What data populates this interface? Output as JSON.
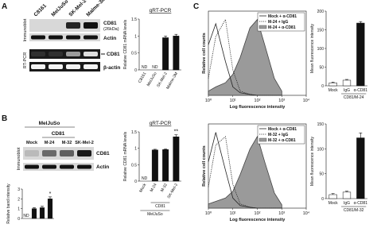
{
  "panel_labels": [
    "A",
    "B",
    "C"
  ],
  "blot_a": {
    "cell_lines": [
      "C8161",
      "MelJuSo",
      "SK-Mel-2",
      "Malme-3M"
    ],
    "sections": [
      "Immunoblot",
      "RT-PCR"
    ],
    "rows": [
      {
        "label": "CD81",
        "detail": "(26kDa)"
      },
      {
        "label": "Actin"
      },
      {
        "label": "CD81"
      },
      {
        "label": "β-actin"
      }
    ]
  },
  "blot_b": {
    "groups": [
      "MelJuSo",
      "CD81"
    ],
    "lanes": [
      "Mock",
      "M-24",
      "M-32",
      "SK-Mel-2"
    ],
    "section": "Immunoblot",
    "rows": [
      "CD81",
      "Actin"
    ]
  },
  "chart_data": [
    {
      "type": "bar",
      "title": "qRT-PCR",
      "y_label": "Relative CD81 mRNA levels",
      "categories": [
        "C8161",
        "MelJuSo",
        "SK-Mel-2",
        "Malme-3M"
      ],
      "values": [
        null,
        null,
        0.95,
        1.0
      ],
      "errors": [
        null,
        null,
        0.05,
        0.05
      ],
      "value_labels": [
        "ND",
        "ND",
        null,
        null
      ],
      "color": "#111111",
      "ylim": [
        0,
        1.5
      ],
      "yticks": [
        0,
        0.5,
        1,
        1.5
      ]
    },
    {
      "type": "bar",
      "y_label": "Relative band intensity",
      "categories": [
        null,
        null,
        null,
        null
      ],
      "values": [
        null,
        1.0,
        1.1,
        2.0
      ],
      "errors": [
        null,
        0.1,
        0.15,
        0.2
      ],
      "value_labels": [
        "ND",
        null,
        null,
        null
      ],
      "annotations": [
        null,
        null,
        null,
        "*"
      ],
      "color": "#111111",
      "ylim": [
        0,
        3
      ],
      "yticks": [
        0,
        1,
        2,
        3
      ]
    },
    {
      "type": "bar",
      "title": "qRT-PCR",
      "y_label": "Relative CD81 mRNA levels",
      "categories": [
        "Mock",
        "M-24",
        "M-32",
        "SK-Mel-2"
      ],
      "values": [
        null,
        0.95,
        0.96,
        1.35
      ],
      "errors": [
        null,
        0.02,
        0.02,
        0.06
      ],
      "value_labels": [
        "ND",
        null,
        null,
        null
      ],
      "annotations": [
        null,
        null,
        null,
        "**"
      ],
      "groups": [
        {
          "label": "CD81",
          "categories": [
            "M-24",
            "M-32"
          ]
        },
        {
          "label": "MelJuSo",
          "categories": [
            "Mock",
            "M-24",
            "M-32"
          ]
        }
      ],
      "color": "#111111",
      "ylim": [
        0,
        1.5
      ],
      "yticks": [
        0,
        0.5,
        1,
        1.5
      ]
    },
    {
      "type": "line",
      "x_label": "Log fluorescence intensity",
      "y_label": "Relative cell counts",
      "log_x": true,
      "x": [
        1,
        2,
        5,
        10,
        20,
        50,
        100,
        200,
        500,
        1000
      ],
      "series": [
        {
          "name": "Mock + α-CD81",
          "color": "#222222",
          "line_style": "solid",
          "fill": null,
          "values": [
            60,
            85,
            40,
            10,
            3,
            1,
            0,
            0,
            0,
            0
          ]
        },
        {
          "name": "M-24 + IgG",
          "color": "#222222",
          "line_style": "dotted",
          "fill": null,
          "values": [
            20,
            70,
            90,
            30,
            5,
            1,
            0,
            0,
            0,
            0
          ]
        },
        {
          "name": "M-24 + α-CD81",
          "color": "#444444",
          "line_style": "solid",
          "fill": "#9a9a9a",
          "values": [
            5,
            10,
            15,
            25,
            45,
            80,
            90,
            60,
            20,
            5
          ]
        }
      ],
      "xlim": [
        1,
        10000
      ],
      "ylim": [
        0,
        100
      ],
      "xticks": [
        {
          "value": 1,
          "label": "10⁰"
        },
        {
          "value": 10,
          "label": "10¹"
        },
        {
          "value": 100,
          "label": "10²"
        },
        {
          "value": 1000,
          "label": "10³"
        },
        {
          "value": 10000,
          "label": "10⁴"
        }
      ],
      "legend": "upper right"
    },
    {
      "type": "bar",
      "y_label": "Mean fluorescence intensity",
      "categories": [
        "Mock",
        "IgG",
        "α-CD81"
      ],
      "values": [
        8,
        15,
        168
      ],
      "errors": [
        2,
        2,
        4
      ],
      "colors": [
        "#ffffff",
        "#ffffff",
        "#111111"
      ],
      "groups": [
        {
          "label": "CD81/M-24",
          "categories": [
            "IgG",
            "α-CD81"
          ]
        }
      ],
      "ylim": [
        0,
        200
      ],
      "yticks": [
        0,
        50,
        100,
        150,
        200
      ]
    },
    {
      "type": "line",
      "x_label": "Log fluorescence intensity",
      "y_label": "Relative cell counts",
      "log_x": true,
      "x": [
        1,
        2,
        5,
        10,
        20,
        50,
        100,
        200,
        500,
        1000
      ],
      "series": [
        {
          "name": "Mock + α-CD81",
          "color": "#222222",
          "line_style": "solid",
          "fill": null,
          "values": [
            55,
            90,
            45,
            12,
            3,
            1,
            0,
            0,
            0,
            0
          ]
        },
        {
          "name": "M-32 + IgG",
          "color": "#222222",
          "line_style": "dotted",
          "fill": null,
          "values": [
            25,
            75,
            85,
            28,
            5,
            1,
            0,
            0,
            0,
            0
          ]
        },
        {
          "name": "M-32 + α-CD81",
          "color": "#444444",
          "line_style": "solid",
          "fill": "#9a9a9a",
          "values": [
            5,
            8,
            12,
            20,
            40,
            70,
            85,
            55,
            18,
            4
          ]
        }
      ],
      "xlim": [
        1,
        10000
      ],
      "ylim": [
        0,
        100
      ],
      "xticks": [
        {
          "value": 1,
          "label": "10⁰"
        },
        {
          "value": 10,
          "label": "10¹"
        },
        {
          "value": 100,
          "label": "10²"
        },
        {
          "value": 1000,
          "label": "10³"
        },
        {
          "value": 10000,
          "label": "10⁴"
        }
      ],
      "legend": "upper right"
    },
    {
      "type": "bar",
      "y_label": "Mean fluorescence intensity",
      "categories": [
        "Mock",
        "IgG",
        "α-CD81"
      ],
      "values": [
        8,
        13,
        122
      ],
      "errors": [
        2,
        2,
        10
      ],
      "colors": [
        "#ffffff",
        "#ffffff",
        "#111111"
      ],
      "groups": [
        {
          "label": "CD81/M-32",
          "categories": [
            "IgG",
            "α-CD81"
          ]
        }
      ],
      "ylim": [
        0,
        150
      ],
      "yticks": [
        0,
        50,
        100,
        150
      ]
    }
  ]
}
